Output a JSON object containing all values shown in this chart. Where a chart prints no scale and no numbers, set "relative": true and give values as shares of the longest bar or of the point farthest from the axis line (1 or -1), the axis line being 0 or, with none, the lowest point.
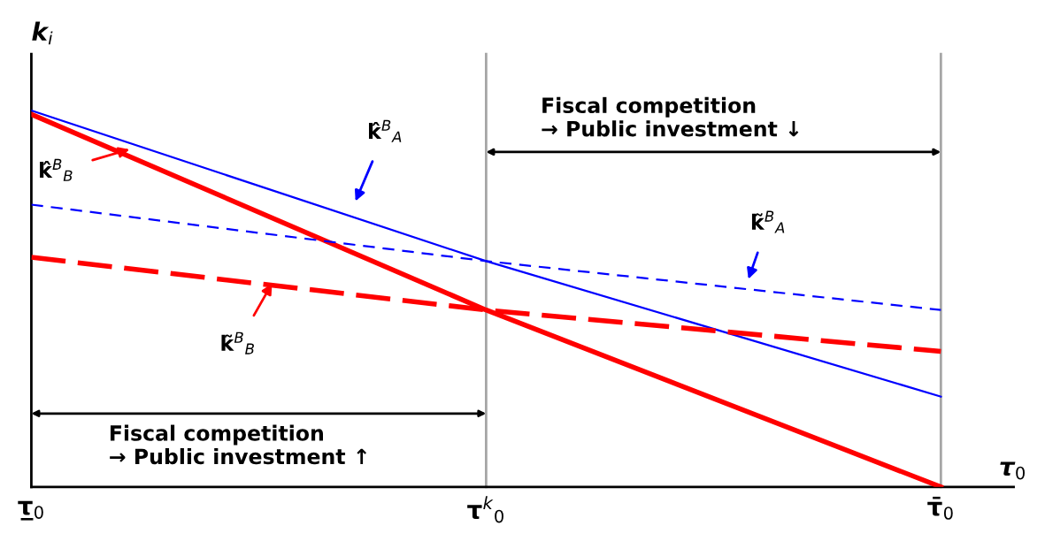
{
  "chart_data": {
    "type": "line",
    "relative": true,
    "xlabel": "τ$_{0}$",
    "ylabel": "k$_{i}$",
    "categories": [
      "τ̲$_{0}$",
      "τ$^{k}$$_{0}$",
      "τ̄$_{0}$"
    ],
    "series": [
      {
        "color": "#0000ff",
        "values": [
          1.0,
          0.6,
          0.24
        ],
        "line_style": "solid"
      },
      {
        "color": "#ff0000",
        "values": [
          0.99,
          0.47,
          0
        ],
        "line_style": "solid"
      },
      {
        "color": "#0000ff",
        "values": [
          0.75,
          0.6,
          0.47
        ],
        "line_style": "dashed"
      },
      {
        "color": "#ff0000",
        "values": [
          0.61,
          0.47,
          0.36
        ],
        "line_style": "dashed"
      }
    ],
    "ref_lines": [
      {
        "axis": "x",
        "value": "τ$^{k}$$_{0}$",
        "color": "#a6a6a6"
      },
      {
        "axis": "x",
        "value": "τ̄$_{0}$",
        "color": "#a6a6a6"
      }
    ],
    "annotations": [
      "k̂$^{B}$$_{A}$",
      "k̂$^{B}$$_{B}$",
      "k̃$^{B}$$_{A}$",
      "k̃$^{B}$$_{B}$",
      "Fiscal competition\n→ Public investment ↓",
      "Fiscal competition\n→ Public investment ↑"
    ],
    "grid": false,
    "legend": false,
    "marker": "none"
  }
}
